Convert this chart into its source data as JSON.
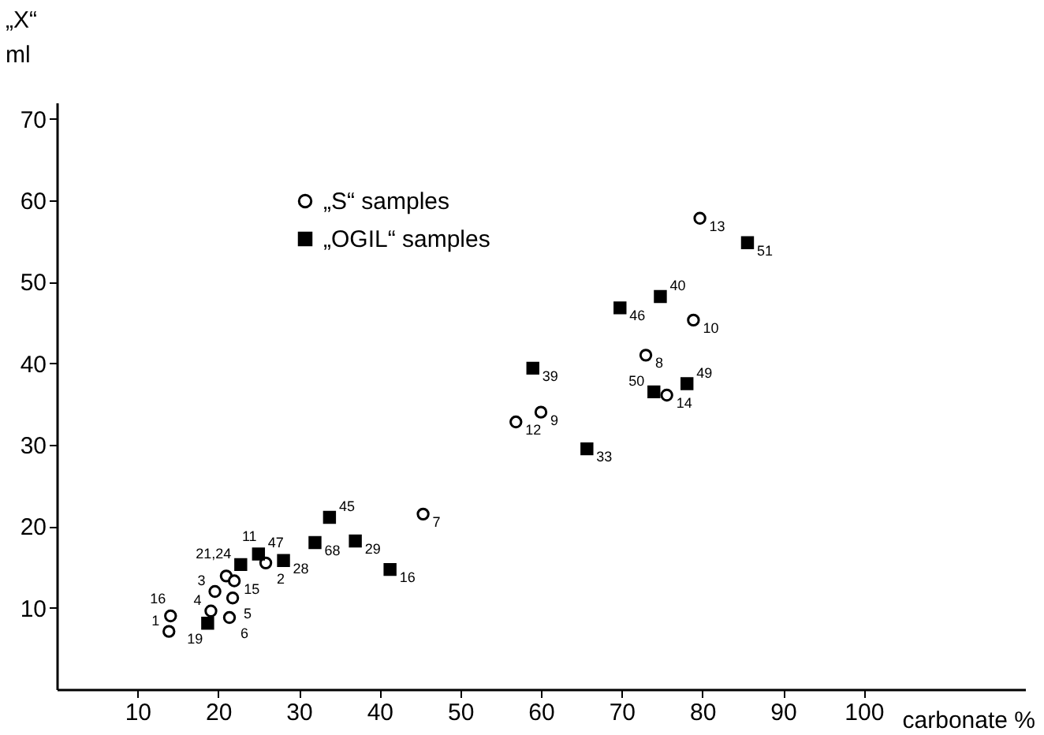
{
  "chart_data": {
    "type": "scatter",
    "xlabel": "carbonate %",
    "ylabel": "„X“\nml",
    "xlim": [
      0,
      120
    ],
    "ylim": [
      0,
      72
    ],
    "xticks": [
      10,
      20,
      30,
      40,
      50,
      60,
      70,
      80,
      90,
      100
    ],
    "yticks": [
      10,
      20,
      30,
      40,
      50,
      60,
      70
    ],
    "grid": false,
    "legend": "top left",
    "series": [
      {
        "name": "„S“ samples",
        "color": "#000000",
        "marker": "circle",
        "x": [
          13.9,
          14.1,
          19.1,
          19.6,
          21.4,
          21.0,
          22.0,
          21.8,
          25.9,
          45.4,
          79.7,
          78.9,
          73.0,
          75.6,
          60.0,
          56.9
        ],
        "values": [
          7.1,
          9.0,
          9.6,
          12.0,
          8.8,
          13.9,
          13.3,
          11.2,
          15.5,
          21.5,
          57.8,
          45.3,
          41.0,
          36.1,
          34.0,
          32.8
        ]
      },
      {
        "name": "„OGIL“ samples",
        "color": "#000000",
        "marker": "square",
        "x": [
          18.7,
          22.8,
          25.0,
          28.1,
          32.0,
          33.8,
          37.0,
          41.3,
          85.6,
          74.8,
          69.8,
          78.1,
          74.0,
          59.0,
          65.7
        ],
        "values": [
          8.1,
          15.3,
          16.6,
          15.8,
          18.0,
          21.1,
          18.2,
          14.7,
          54.8,
          48.2,
          46.8,
          37.5,
          36.5,
          39.4,
          29.5
        ]
      }
    ],
    "annotations": [
      {
        "text": "1",
        "x": 13.9,
        "y": 7.1
      },
      {
        "text": "16",
        "x": 14.1,
        "y": 9.0
      },
      {
        "text": "4",
        "x": 19.1,
        "y": 9.6
      },
      {
        "text": "3",
        "x": 19.6,
        "y": 12.0
      },
      {
        "text": "6",
        "x": 21.4,
        "y": 8.8
      },
      {
        "text": "11",
        "x": 21.0,
        "y": 13.9
      },
      {
        "text": "15",
        "x": 22.0,
        "y": 13.3
      },
      {
        "text": "5",
        "x": 21.8,
        "y": 11.2
      },
      {
        "text": "2",
        "x": 25.9,
        "y": 15.5
      },
      {
        "text": "7",
        "x": 45.4,
        "y": 21.5
      },
      {
        "text": "13",
        "x": 79.7,
        "y": 57.8
      },
      {
        "text": "10",
        "x": 78.9,
        "y": 45.3
      },
      {
        "text": "8",
        "x": 73.0,
        "y": 41.0
      },
      {
        "text": "14",
        "x": 75.6,
        "y": 36.1
      },
      {
        "text": "9",
        "x": 60.0,
        "y": 34.0
      },
      {
        "text": "12",
        "x": 56.9,
        "y": 32.8
      },
      {
        "text": "19",
        "x": 18.7,
        "y": 8.1
      },
      {
        "text": "21,24",
        "x": 22.8,
        "y": 15.3
      },
      {
        "text": "47",
        "x": 25.0,
        "y": 16.6
      },
      {
        "text": "28",
        "x": 28.1,
        "y": 15.8
      },
      {
        "text": "68",
        "x": 32.0,
        "y": 18.0
      },
      {
        "text": "45",
        "x": 33.8,
        "y": 21.1
      },
      {
        "text": "29",
        "x": 37.0,
        "y": 18.2
      },
      {
        "text": "16",
        "x": 41.3,
        "y": 14.7
      },
      {
        "text": "51",
        "x": 85.6,
        "y": 54.8
      },
      {
        "text": "40",
        "x": 74.8,
        "y": 48.2
      },
      {
        "text": "46",
        "x": 69.8,
        "y": 46.8
      },
      {
        "text": "49",
        "x": 78.1,
        "y": 37.5
      },
      {
        "text": "50",
        "x": 74.0,
        "y": 36.5
      },
      {
        "text": "39",
        "x": 59.0,
        "y": 39.4
      },
      {
        "text": "33",
        "x": 65.7,
        "y": 29.5
      }
    ]
  }
}
